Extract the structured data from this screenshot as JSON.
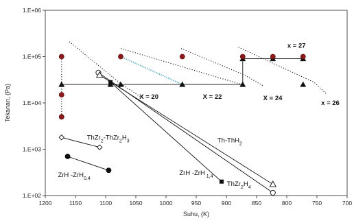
{
  "chart_data": {
    "type": "scatter",
    "xlabel": "Suhu, (K)",
    "ylabel": "Tekanan, (Pa)",
    "xlim": [
      1200,
      700
    ],
    "ylim": [
      100,
      1000000
    ],
    "x_scale": "linear-reversed",
    "y_scale": "log",
    "x_ticks": [
      "1200",
      "1150",
      "1100",
      "1050",
      "1000",
      "950",
      "900",
      "850",
      "800",
      "750",
      "700"
    ],
    "x_tick_values": [
      1200,
      1150,
      1100,
      1050,
      1000,
      950,
      900,
      850,
      800,
      750,
      700
    ],
    "y_ticks": [
      "1.E+02",
      "1.E+03",
      "1.E+04",
      "1.E+05",
      "1.E+06"
    ],
    "y_tick_values": [
      100,
      1000,
      10000,
      100000,
      1000000
    ],
    "grid": false,
    "colors": {
      "red": "#8b1a1a",
      "cyan": "#3399bb",
      "black": "#111111"
    },
    "series": [
      {
        "name": "ThZr2-ThZr2H3",
        "line": "solid",
        "marker": "open-diamond",
        "color": "#111111",
        "points": [
          [
            1173,
            1800
          ],
          [
            1110,
            1100
          ]
        ]
      },
      {
        "name": "ZrH -ZrH0,4",
        "line": "solid",
        "marker": "filled-circle",
        "color": "#111111",
        "points": [
          [
            1163,
            700
          ],
          [
            1095,
            350
          ]
        ]
      },
      {
        "name": "Th-ThH2",
        "line": "solid",
        "marker": "open-circle",
        "color": "#111111",
        "points": [
          [
            1112,
            45000
          ],
          [
            823,
            115
          ]
        ]
      },
      {
        "name": "ThZr2H4",
        "line": "solid",
        "marker": "open-triangle",
        "color": "#111111",
        "points": [
          [
            1110,
            40000
          ],
          [
            823,
            175
          ]
        ]
      },
      {
        "name": "ZrH -ZrH 1,4",
        "line": "solid",
        "marker": "filled-square",
        "color": "#111111",
        "points": [
          [
            1092,
            28000
          ],
          [
            908,
            200
          ]
        ]
      },
      {
        "name": "X = 20",
        "line": "dotted",
        "marker": "none",
        "color": "#111111",
        "points": [
          [
            1160,
            210000
          ],
          [
            1075,
            26000
          ],
          [
            1040,
            13000
          ]
        ]
      },
      {
        "name": "X = 22",
        "line": "dotted",
        "marker": "none",
        "color": "#111111",
        "points": [
          [
            1075,
            150000
          ],
          [
            870,
            24000
          ]
        ]
      },
      {
        "name": "X = 24",
        "line": "dotted",
        "marker": "none",
        "color": "#111111",
        "points": [
          [
            975,
            150000
          ],
          [
            870,
            40000
          ],
          [
            838,
            23000
          ]
        ]
      },
      {
        "name": "x = 26",
        "line": "dotted",
        "marker": "none",
        "color": "#111111",
        "points": [
          [
            880,
            160000
          ],
          [
            755,
            28000
          ],
          [
            735,
            16000
          ]
        ]
      },
      {
        "name": "red-points",
        "line": "none",
        "marker": "filled-circle",
        "color": "#8b1a1a",
        "points": [
          [
            1173,
            100000
          ],
          [
            1173,
            15000
          ],
          [
            1173,
            5000
          ],
          [
            1075,
            100000
          ],
          [
            973,
            100000
          ],
          [
            873,
            100000
          ],
          [
            823,
            100000
          ],
          [
            773,
            100000
          ]
        ]
      },
      {
        "name": "vertical-dotted",
        "line": "dotted",
        "marker": "none",
        "color": "#111111",
        "points": [
          [
            1173,
            100000
          ],
          [
            1173,
            5000
          ]
        ]
      },
      {
        "name": "cyan-segment",
        "line": "dotted-blue",
        "marker": "none",
        "color": "#3399bb",
        "points": [
          [
            1075,
            100000
          ],
          [
            973,
            25000
          ]
        ]
      },
      {
        "name": "horizontal-plateau",
        "line": "solid",
        "marker": "filled-triangle",
        "color": "#111111",
        "points": [
          [
            1173,
            25000
          ],
          [
            1092,
            25000
          ],
          [
            1075,
            25000
          ],
          [
            973,
            25000
          ],
          [
            873,
            25000
          ]
        ]
      },
      {
        "name": "right-plateau",
        "line": "solid",
        "marker": "filled-triangle",
        "color": "#111111",
        "points": [
          [
            873,
            90000
          ],
          [
            823,
            90000
          ],
          [
            773,
            90000
          ]
        ]
      },
      {
        "name": "vertical-step",
        "line": "solid",
        "marker": "none",
        "color": "#111111",
        "points": [
          [
            873,
            25000
          ],
          [
            873,
            90000
          ]
        ]
      },
      {
        "name": "triangle-x26",
        "line": "none",
        "marker": "filled-triangle",
        "color": "#111111",
        "points": [
          [
            773,
            25000
          ]
        ]
      }
    ],
    "annotations": [
      {
        "text": "ThZr",
        "sub": "2",
        "text2": "-ThZr",
        "sub2": "2",
        "text3": "H",
        "sub3": "3",
        "x": 1131,
        "y": 1600
      },
      {
        "text": "ZrH -ZrH",
        "sub": "0,4",
        "x": 1179,
        "y": 250
      },
      {
        "text": "Th-ThH",
        "sub": "2",
        "x": 915,
        "y": 1400
      },
      {
        "text": "ZrH -ZrH",
        "sub": " 1,4",
        "x": 978,
        "y": 280
      },
      {
        "text": "ThZr",
        "sub": "2",
        "text2": "H",
        "sub2": "4",
        "x": 899,
        "y": 160
      },
      {
        "text": "X = 20",
        "x": 1044,
        "y": 12200,
        "bold": true
      },
      {
        "text": "X = 22",
        "x": 939,
        "y": 12200,
        "bold": true
      },
      {
        "text": "X = 24",
        "x": 839,
        "y": 11500,
        "bold": true
      },
      {
        "text": "x = 26",
        "x": 743,
        "y": 9000,
        "bold": true
      },
      {
        "text": "x = 27",
        "x": 799,
        "y": 155000,
        "bold": true
      }
    ]
  }
}
